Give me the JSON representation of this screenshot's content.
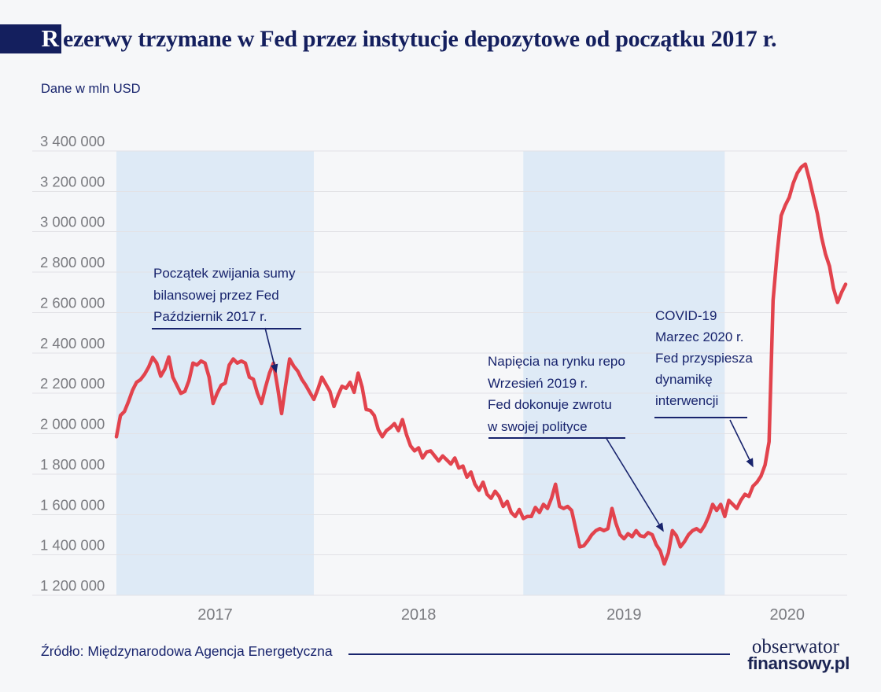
{
  "header": {
    "title_initial": "R",
    "title_rest": "ezerwy trzymane w Fed przez instytucje depozytowe od początku 2017 r.",
    "subtitle": "Dane w mln USD"
  },
  "footer": {
    "source": "Źródło: Międzynarodowa Agencja Energetyczna",
    "brand_line1": "obserwator",
    "brand_line2": "finansowy.pl"
  },
  "colors": {
    "background": "#f6f7f9",
    "title_block": "#141f5e",
    "navy": "#18246d",
    "accent_red": "#e2434d",
    "band_blue": "#deeaf6",
    "grid": "#e2e2e6",
    "axis_gray": "#7a7b80"
  },
  "chart_data": {
    "type": "line",
    "title": "Rezerwy trzymane w Fed przez instytucje depozytowe od początku 2017 r.",
    "units_label": "Dane w mln USD",
    "xlabel": "",
    "ylabel": "mln USD",
    "ylim": [
      1200000,
      3400000
    ],
    "ytick_step": 200000,
    "grid": true,
    "legend": "none",
    "x_unit": "week",
    "x_start": "2017-01",
    "x_labels": [
      "2017",
      "2018",
      "2019",
      "2020"
    ],
    "x_label_center_indices": [
      24.5,
      75,
      126,
      166.5
    ],
    "year_bands": [
      {
        "label": "2017",
        "start_index": 0,
        "end_index": 49
      },
      {
        "label": "2019",
        "start_index": 101,
        "end_index": 151
      }
    ],
    "annotations": [
      {
        "lines": [
          "Początek zwijania sumy",
          "bilansowej przez Fed",
          "Październik 2017 r."
        ],
        "target_index": 39
      },
      {
        "lines": [
          "Napięcia na rynku repo",
          "Wrzesień 2019 r.",
          "Fed dokonuje zwrotu",
          "w swojej polityce"
        ],
        "target_index": 136
      },
      {
        "lines": [
          "COVID-19",
          "Marzec 2020 r.",
          "Fed przyspiesza",
          "dynamikę",
          "interwencji"
        ],
        "target_index": 158
      }
    ],
    "series": [
      {
        "name": "Rezerwy trzymane w Fed (mln USD)",
        "color": "#e2434d",
        "values": [
          1985000,
          2090000,
          2110000,
          2160000,
          2215000,
          2255000,
          2268000,
          2295000,
          2330000,
          2378000,
          2350000,
          2285000,
          2320000,
          2380000,
          2280000,
          2240000,
          2200000,
          2210000,
          2263000,
          2350000,
          2340000,
          2360000,
          2350000,
          2280000,
          2150000,
          2200000,
          2240000,
          2250000,
          2340000,
          2370000,
          2350000,
          2360000,
          2350000,
          2280000,
          2270000,
          2200000,
          2150000,
          2230000,
          2300000,
          2350000,
          2230000,
          2100000,
          2240000,
          2370000,
          2335000,
          2310000,
          2270000,
          2240000,
          2205000,
          2170000,
          2220000,
          2280000,
          2245000,
          2210000,
          2135000,
          2190000,
          2235000,
          2225000,
          2255000,
          2205000,
          2300000,
          2230000,
          2120000,
          2115000,
          2090000,
          2020000,
          1985000,
          2015000,
          2030000,
          2050000,
          2015000,
          2070000,
          1995000,
          1940000,
          1915000,
          1930000,
          1880000,
          1910000,
          1915000,
          1890000,
          1865000,
          1890000,
          1870000,
          1850000,
          1880000,
          1830000,
          1840000,
          1785000,
          1810000,
          1750000,
          1720000,
          1760000,
          1700000,
          1680000,
          1715000,
          1690000,
          1640000,
          1665000,
          1610000,
          1590000,
          1625000,
          1580000,
          1590000,
          1590000,
          1635000,
          1610000,
          1650000,
          1630000,
          1680000,
          1750000,
          1640000,
          1630000,
          1640000,
          1620000,
          1530000,
          1440000,
          1445000,
          1470000,
          1500000,
          1520000,
          1530000,
          1520000,
          1530000,
          1630000,
          1555000,
          1500000,
          1480000,
          1505000,
          1490000,
          1520000,
          1495000,
          1490000,
          1510000,
          1500000,
          1450000,
          1420000,
          1355000,
          1410000,
          1520000,
          1495000,
          1440000,
          1465000,
          1500000,
          1520000,
          1530000,
          1515000,
          1545000,
          1590000,
          1650000,
          1620000,
          1650000,
          1590000,
          1670000,
          1650000,
          1630000,
          1670000,
          1700000,
          1690000,
          1740000,
          1760000,
          1790000,
          1845000,
          1960000,
          2660000,
          2890000,
          3080000,
          3130000,
          3170000,
          3240000,
          3290000,
          3320000,
          3335000,
          3260000,
          3175000,
          3090000,
          2975000,
          2890000,
          2830000,
          2720000,
          2650000,
          2700000,
          2740000
        ]
      }
    ]
  }
}
